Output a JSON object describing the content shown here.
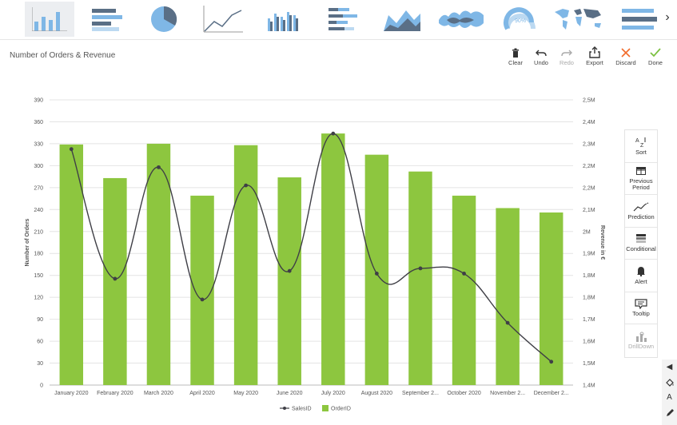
{
  "gallery": {
    "items": [
      {
        "icon": "bar-chart-icon"
      },
      {
        "icon": "horizontal-bar-chart-icon"
      },
      {
        "icon": "pie-chart-icon"
      },
      {
        "icon": "line-chart-icon"
      },
      {
        "icon": "grouped-bar-chart-icon"
      },
      {
        "icon": "stacked-bar-chart-icon"
      },
      {
        "icon": "area-chart-icon"
      },
      {
        "icon": "stream-chart-icon"
      },
      {
        "icon": "gauge-chart-icon",
        "label": "90%"
      },
      {
        "icon": "world-map-icon"
      },
      {
        "icon": "bar-list-icon"
      }
    ],
    "next_label": "›"
  },
  "header": {
    "title": "Number of Orders & Revenue"
  },
  "toolbar": {
    "clear": "Clear",
    "undo": "Undo",
    "redo": "Redo",
    "export": "Export",
    "discard": "Discard",
    "done": "Done"
  },
  "side_panel": {
    "sort": "Sort",
    "previous_period_1": "Previous",
    "previous_period_2": "Period",
    "prediction": "Prediction",
    "conditional": "Conditional",
    "alert": "Alert",
    "tooltip": "Tooltip",
    "drilldown": "DrillDown"
  },
  "colors": {
    "bar": "#8dc63f",
    "line": "#3f3f46",
    "accent_orange": "#f26b2a",
    "accent_green": "#7cc142",
    "icon_blue": "#7fb7e6",
    "icon_dark": "#5a6f86"
  },
  "chart_data": {
    "type": "bar",
    "categories": [
      "January 2020",
      "February 2020",
      "March 2020",
      "April 2020",
      "May 2020",
      "June 2020",
      "July 2020",
      "August 2020",
      "September 2...",
      "October 2020",
      "November 2...",
      "December 2..."
    ],
    "series": [
      {
        "name": "OrderID",
        "type": "bar",
        "axis": "left",
        "values": [
          329,
          283,
          330,
          259,
          328,
          284,
          344,
          315,
          292,
          259,
          242,
          236
        ]
      },
      {
        "name": "SalesID",
        "type": "line",
        "axis": "right",
        "values": [
          2.31,
          1.81,
          2.24,
          1.73,
          2.17,
          1.84,
          2.37,
          1.83,
          1.85,
          1.83,
          1.64,
          1.49
        ]
      }
    ],
    "ylabel": "Number of Orders",
    "y2label": "Revenue in €",
    "ylim": [
      0,
      390
    ],
    "yticks": [
      "0",
      "30",
      "60",
      "90",
      "120",
      "150",
      "180",
      "210",
      "240",
      "270",
      "300",
      "330",
      "360",
      "390"
    ],
    "y2ticks": [
      "1,4M",
      "1,5M",
      "1,6M",
      "1,7M",
      "1,8M",
      "1,8M",
      "1,9M",
      "2M",
      "2,1M",
      "2,2M",
      "2,2M",
      "2,3M",
      "2,4M",
      "2,5M"
    ],
    "y2lim": [
      1.4,
      2.5
    ],
    "grid": true,
    "legend": [
      {
        "name": "SalesID",
        "marker": "line"
      },
      {
        "name": "OrderID",
        "marker": "square"
      }
    ],
    "legend_position": "bottom"
  },
  "mini_tools": {
    "collapse": "◀",
    "text": "A"
  }
}
